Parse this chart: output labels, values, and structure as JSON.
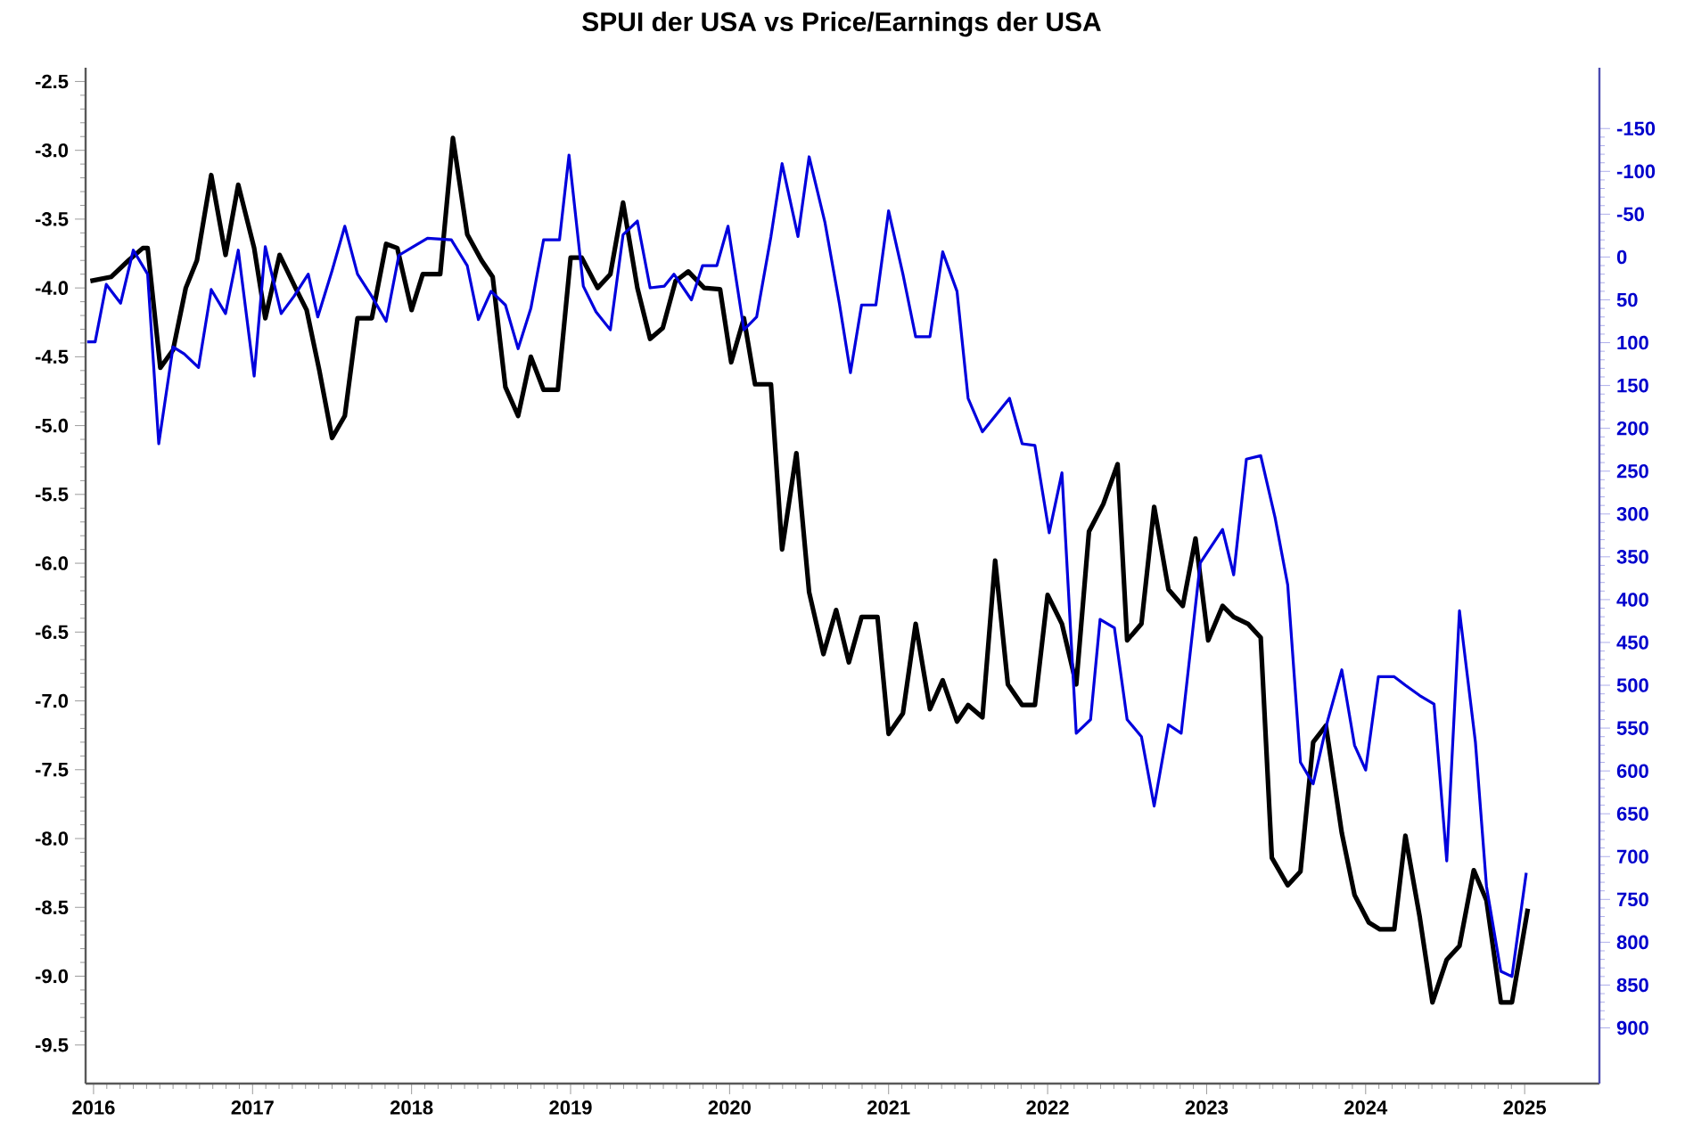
{
  "chart_data": {
    "type": "line",
    "title": "SPUI der USA vs Price/Earnings der USA",
    "xlim": [
      2015.95,
      2025.47
    ],
    "xticks": [
      {
        "value": 2016,
        "label": "2016"
      },
      {
        "value": 2017,
        "label": "2017"
      },
      {
        "value": 2018,
        "label": "2018"
      },
      {
        "value": 2019,
        "label": "2019"
      },
      {
        "value": 2020,
        "label": "2020"
      },
      {
        "value": 2021,
        "label": "2021"
      },
      {
        "value": 2022,
        "label": "2022"
      },
      {
        "value": 2023,
        "label": "2023"
      },
      {
        "value": 2024,
        "label": "2024"
      },
      {
        "value": 2025,
        "label": "2025"
      }
    ],
    "ylim": [
      -9.78,
      -2.4
    ],
    "yticks": [
      {
        "value": -2.5,
        "label": "-2.5"
      },
      {
        "value": -3.0,
        "label": "-3.0"
      },
      {
        "value": -3.5,
        "label": "-3.5"
      },
      {
        "value": -4.0,
        "label": "-4.0"
      },
      {
        "value": -4.5,
        "label": "-4.5"
      },
      {
        "value": -5.0,
        "label": "-5.0"
      },
      {
        "value": -5.5,
        "label": "-5.5"
      },
      {
        "value": -6.0,
        "label": "-6.0"
      },
      {
        "value": -6.5,
        "label": "-6.5"
      },
      {
        "value": -7.0,
        "label": "-7.0"
      },
      {
        "value": -7.5,
        "label": "-7.5"
      },
      {
        "value": -8.0,
        "label": "-8.0"
      },
      {
        "value": -8.5,
        "label": "-8.5"
      },
      {
        "value": -9.0,
        "label": "-9.0"
      },
      {
        "value": -9.5,
        "label": "-9.5"
      }
    ],
    "y2lim": [
      965,
      -221
    ],
    "y2ticks": [
      -150,
      -100,
      -50,
      0,
      50,
      100,
      150,
      200,
      250,
      300,
      350,
      400,
      450,
      500,
      550,
      600,
      650,
      700,
      750,
      800,
      850,
      900
    ],
    "grid": false,
    "marker": "none",
    "line_style": "solid",
    "series": [
      {
        "color": "#0000dd",
        "axis": "y2",
        "x": [
          2015.96,
          2016.01,
          2016.08,
          2016.17,
          2016.25,
          2016.34,
          2016.41,
          2016.5,
          2016.57,
          2016.66,
          2016.74,
          2016.83,
          2016.91,
          2017.01,
          2017.08,
          2017.18,
          2017.26,
          2017.35,
          2017.41,
          2017.5,
          2017.58,
          2017.66,
          2017.75,
          2017.84,
          2017.92,
          2018.01,
          2018.1,
          2018.25,
          2018.35,
          2018.42,
          2018.5,
          2018.59,
          2018.67,
          2018.75,
          2018.83,
          2018.93,
          2018.99,
          2019.08,
          2019.16,
          2019.25,
          2019.33,
          2019.42,
          2019.5,
          2019.59,
          2019.65,
          2019.76,
          2019.83,
          2019.92,
          2019.99,
          2020.09,
          2020.17,
          2020.26,
          2020.33,
          2020.43,
          2020.5,
          2020.6,
          2020.69,
          2020.76,
          2020.83,
          2020.92,
          2021.0,
          2021.09,
          2021.17,
          2021.26,
          2021.34,
          2021.43,
          2021.5,
          2021.59,
          2021.76,
          2021.84,
          2021.92,
          2022.01,
          2022.09,
          2022.18,
          2022.27,
          2022.33,
          2022.42,
          2022.5,
          2022.59,
          2022.67,
          2022.76,
          2022.84,
          2022.96,
          2023.1,
          2023.17,
          2023.25,
          2023.34,
          2023.43,
          2023.51,
          2023.59,
          2023.67,
          2023.76,
          2023.85,
          2023.93,
          2024.0,
          2024.08,
          2024.18,
          2024.25,
          2024.34,
          2024.43,
          2024.51,
          2024.59,
          2024.69,
          2024.76,
          2024.85,
          2024.92,
          2025.01
        ],
        "values": [
          99,
          99,
          32,
          54,
          -8,
          20,
          218,
          105,
          113,
          129,
          38,
          66,
          -8,
          139,
          -12,
          66,
          46,
          20,
          70,
          16,
          -36,
          20,
          46,
          75,
          -2,
          -12,
          -22,
          -20,
          10,
          73,
          40,
          56,
          107,
          60,
          -20,
          -20,
          -119,
          34,
          64,
          85,
          -26,
          -42,
          36,
          34,
          20,
          50,
          10,
          10,
          -36,
          85,
          70,
          -24,
          -109,
          -24,
          -117,
          -40,
          54,
          135,
          56,
          56,
          -54,
          20,
          93,
          93,
          -6,
          40,
          165,
          204,
          165,
          218,
          220,
          322,
          252,
          556,
          540,
          423,
          433,
          540,
          560,
          641,
          546,
          556,
          357,
          318,
          371,
          236,
          232,
          304,
          383,
          590,
          615,
          542,
          482,
          570,
          599,
          490,
          490,
          500,
          512,
          522,
          705,
          413,
          566,
          735,
          834,
          840,
          719
        ]
      },
      {
        "color": "#000000",
        "x": [
          2015.98,
          2016.11,
          2016.22,
          2016.31,
          2016.34,
          2016.42,
          2016.5,
          2016.58,
          2016.65,
          2016.74,
          2016.83,
          2016.91,
          2017.01,
          2017.08,
          2017.17,
          2017.27,
          2017.34,
          2017.42,
          2017.5,
          2017.58,
          2017.66,
          2017.75,
          2017.84,
          2017.91,
          2018.0,
          2018.07,
          2018.18,
          2018.26,
          2018.35,
          2018.44,
          2018.51,
          2018.59,
          2018.67,
          2018.75,
          2018.83,
          2018.92,
          2019.0,
          2019.07,
          2019.17,
          2019.25,
          2019.33,
          2019.42,
          2019.5,
          2019.58,
          2019.66,
          2019.74,
          2019.84,
          2019.94,
          2020.01,
          2020.09,
          2020.16,
          2020.26,
          2020.33,
          2020.42,
          2020.5,
          2020.59,
          2020.67,
          2020.75,
          2020.83,
          2020.93,
          2021.0,
          2021.09,
          2021.17,
          2021.26,
          2021.34,
          2021.43,
          2021.5,
          2021.59,
          2021.67,
          2021.75,
          2021.84,
          2021.92,
          2022.0,
          2022.09,
          2022.18,
          2022.26,
          2022.35,
          2022.44,
          2022.5,
          2022.59,
          2022.67,
          2022.76,
          2022.85,
          2022.93,
          2023.01,
          2023.1,
          2023.17,
          2023.26,
          2023.34,
          2023.41,
          2023.51,
          2023.59,
          2023.67,
          2023.75,
          2023.85,
          2023.93,
          2024.02,
          2024.09,
          2024.18,
          2024.25,
          2024.34,
          2024.42,
          2024.51,
          2024.59,
          2024.68,
          2024.76,
          2024.85,
          2024.92,
          2025.02
        ],
        "values": [
          -3.95,
          -3.92,
          -3.8,
          -3.71,
          -3.71,
          -4.58,
          -4.45,
          -4.0,
          -3.8,
          -3.18,
          -3.76,
          -3.25,
          -3.71,
          -4.22,
          -3.76,
          -4.0,
          -4.16,
          -4.6,
          -5.09,
          -4.93,
          -4.22,
          -4.22,
          -3.68,
          -3.71,
          -4.16,
          -3.9,
          -3.9,
          -2.91,
          -3.61,
          -3.8,
          -3.92,
          -4.72,
          -4.93,
          -4.5,
          -4.74,
          -4.74,
          -3.78,
          -3.78,
          -4.0,
          -3.9,
          -3.38,
          -4.0,
          -4.37,
          -4.29,
          -3.95,
          -3.88,
          -4.0,
          -4.01,
          -4.54,
          -4.22,
          -4.7,
          -4.7,
          -5.9,
          -5.2,
          -6.21,
          -6.66,
          -6.34,
          -6.72,
          -6.39,
          -6.39,
          -7.24,
          -7.09,
          -6.44,
          -7.06,
          -6.85,
          -7.15,
          -7.03,
          -7.12,
          -5.98,
          -6.88,
          -7.03,
          -7.03,
          -6.23,
          -6.44,
          -6.88,
          -5.77,
          -5.57,
          -5.28,
          -6.56,
          -6.44,
          -5.59,
          -6.19,
          -6.31,
          -5.82,
          -6.56,
          -6.31,
          -6.39,
          -6.44,
          -6.54,
          -8.14,
          -8.34,
          -8.24,
          -7.3,
          -7.18,
          -7.96,
          -8.41,
          -8.61,
          -8.66,
          -8.66,
          -7.98,
          -8.57,
          -9.19,
          -8.88,
          -8.78,
          -8.23,
          -8.45,
          -9.19,
          -9.19,
          -8.51
        ]
      }
    ]
  }
}
